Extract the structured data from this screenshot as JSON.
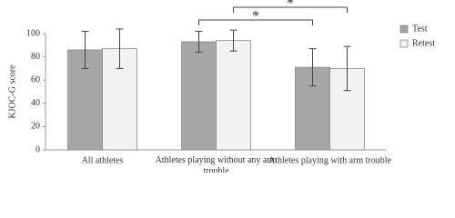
{
  "chart_data": {
    "type": "bar",
    "y_label": "KJOC-G score",
    "categories": [
      "All athletes",
      "Athletes playing without any arm trouble",
      "Athletes playing with arm trouble"
    ],
    "series": [
      {
        "name": "Test",
        "color": "#a6a6a6",
        "values": [
          86,
          93,
          71
        ],
        "errors": [
          16,
          9,
          16
        ]
      },
      {
        "name": "Retest",
        "color": "#f2f2f2",
        "values": [
          87,
          94,
          70
        ],
        "errors": [
          17,
          9,
          19
        ]
      }
    ],
    "annotations": [
      "*",
      "*"
    ],
    "ylim": [
      0,
      100
    ],
    "yticks": [
      0,
      20,
      40,
      60,
      80,
      100
    ],
    "grid": false,
    "legend": "right"
  }
}
